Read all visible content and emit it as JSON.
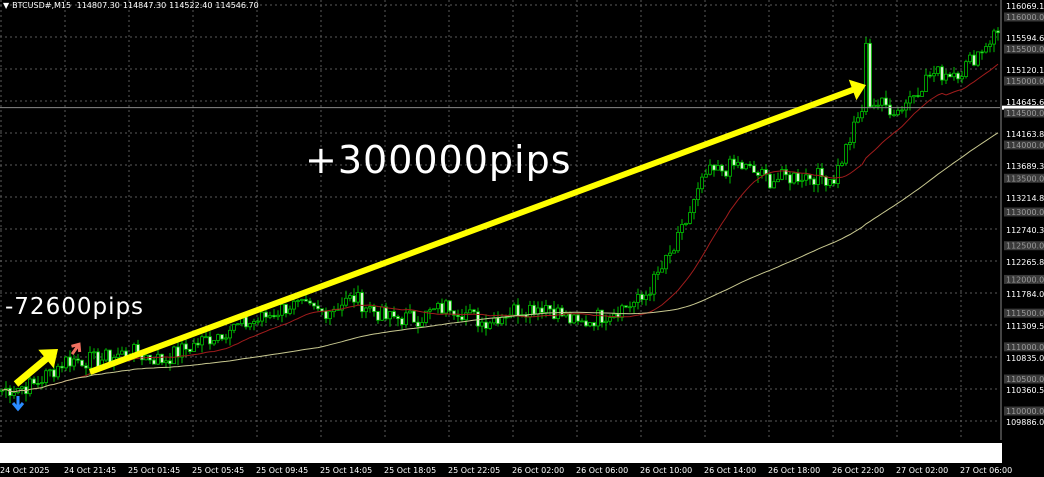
{
  "header": {
    "symbol": "BTCUSD#,M15",
    "open": "114807.30",
    "high": "114847.30",
    "low": "114522.40",
    "close": "114546.70"
  },
  "annotations": {
    "big_label": "+300000pips",
    "small_label": "-72600pips",
    "arrow_color": "#ffff00",
    "text_color": "#ffffff"
  },
  "colors": {
    "background": "#000000",
    "candle": "#00c000",
    "fast_ma": "#a01c1c",
    "slow_ma": "#c8c890",
    "grid": "#5a5a5a",
    "buy_arrow": "#f07060",
    "sell_arrow": "#2a8cff"
  },
  "chart_data": {
    "type": "candlestick",
    "timeframe": "M15",
    "current_price": 114546.7,
    "ylim": [
      109886.0,
      116069.1
    ],
    "price_labels": [
      "116069.10",
      "115594.60",
      "115120.10",
      "114645.60",
      "114163.80",
      "113689.30",
      "113214.80",
      "112740.30",
      "112265.80",
      "111784.00",
      "111309.50",
      "110835.00",
      "110360.50",
      "109886.00"
    ],
    "level_labels": [
      "116000.00",
      "115500.00",
      "115000.00",
      "114500.00",
      "114000.00",
      "113500.00",
      "113000.00",
      "112500.00",
      "112000.00",
      "111500.00",
      "111000.00",
      "110500.00",
      "110000.00"
    ],
    "time_labels": [
      "24 Oct 2025",
      "24 Oct 21:45",
      "25 Oct 01:45",
      "25 Oct 05:45",
      "25 Oct 09:45",
      "25 Oct 14:05",
      "25 Oct 18:05",
      "25 Oct 22:05",
      "26 Oct 02:00",
      "26 Oct 06:00",
      "26 Oct 10:00",
      "26 Oct 14:00",
      "26 Oct 18:00",
      "26 Oct 22:00",
      "27 Oct 02:00",
      "27 Oct 06:00"
    ],
    "approx_closes_every_2h": [
      110360,
      110434,
      110804,
      110804,
      110923,
      110804,
      111027,
      111250,
      111398,
      111620,
      111516,
      111724,
      111427,
      111427,
      111620,
      111368,
      111546,
      111620,
      111324,
      111516,
      111694,
      112436,
      113548,
      113697,
      113474,
      113548,
      113504,
      114660,
      114512,
      115030,
      115105,
      115624,
      115920
    ],
    "series": [
      {
        "values_note": ""
      }
    ],
    "grid": true
  }
}
